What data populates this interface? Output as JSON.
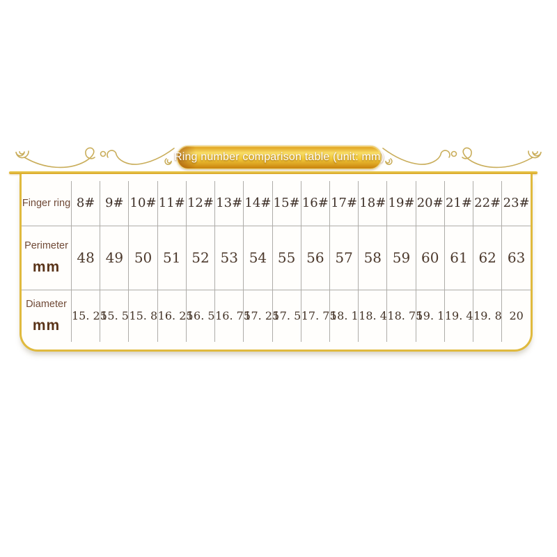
{
  "header": {
    "title": "Ring number comparison table (unit: mm)"
  },
  "colors": {
    "gold_frame": "#e0ba3e",
    "gold_rule_light": "#eccf5a",
    "gold_rule_dark": "#d8a322",
    "pill_gradient_top": "#dd9a14",
    "pill_gradient_light": "#f8dd66",
    "pill_gradient_bottom": "#c8820d",
    "pill_text": "#ffffff",
    "flourish_stroke": "#c9ad5a",
    "label_text": "#6f4936",
    "unit_text": "#5a3419",
    "value_text": "#46362a",
    "grid_line": "#aeaca8"
  },
  "table": {
    "rows": [
      {
        "label": "Finger ring",
        "unit": "",
        "values": [
          "8#",
          "9#",
          "10#",
          "11#",
          "12#",
          "13#",
          "14#",
          "15#",
          "16#",
          "17#",
          "18#",
          "19#",
          "20#",
          "21#",
          "22#",
          "23#"
        ]
      },
      {
        "label": "Perimeter",
        "unit": "mm",
        "values": [
          "48",
          "49",
          "50",
          "51",
          "52",
          "53",
          "54",
          "55",
          "56",
          "57",
          "58",
          "59",
          "60",
          "61",
          "62",
          "63"
        ]
      },
      {
        "label": "Diameter",
        "unit": "mm",
        "values": [
          "15. 25",
          "15. 5",
          "15. 8",
          "16. 25",
          "16. 5",
          "16. 75",
          "17. 25",
          "17. 5",
          "17. 75",
          "18. 1",
          "18. 4",
          "18. 75",
          "19. 1",
          "19. 4",
          "19. 8",
          "20"
        ]
      }
    ]
  },
  "chart_data": {
    "type": "table",
    "title": "Ring number comparison table (unit: mm)",
    "unit": "mm",
    "columns": [
      "8#",
      "9#",
      "10#",
      "11#",
      "12#",
      "13#",
      "14#",
      "15#",
      "16#",
      "17#",
      "18#",
      "19#",
      "20#",
      "21#",
      "22#",
      "23#"
    ],
    "rows": [
      {
        "name": "Perimeter mm",
        "values": [
          48,
          49,
          50,
          51,
          52,
          53,
          54,
          55,
          56,
          57,
          58,
          59,
          60,
          61,
          62,
          63
        ]
      },
      {
        "name": "Diameter mm",
        "values": [
          15.25,
          15.5,
          15.8,
          16.25,
          16.5,
          16.75,
          17.25,
          17.5,
          17.75,
          18.1,
          18.4,
          18.75,
          19.1,
          19.4,
          19.8,
          20
        ]
      }
    ]
  }
}
